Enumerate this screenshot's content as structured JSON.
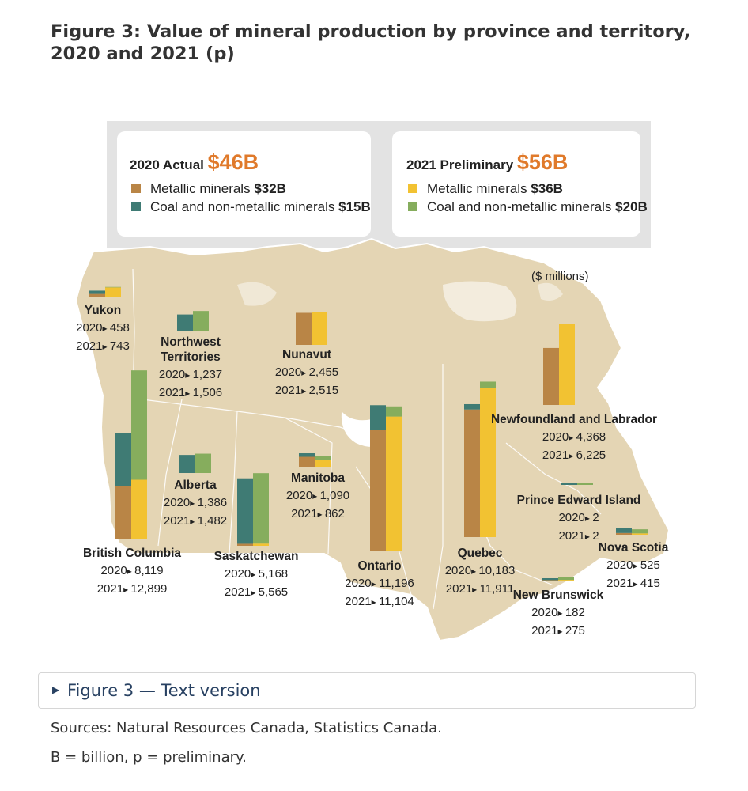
{
  "figure": {
    "title": "Figure 3: Value of mineral production by province and territory, 2020 and 2021 (p)",
    "text_version_label": "Figure 3 — Text version",
    "sources": "Sources: Natural Resources Canada, Statistics Canada.",
    "footnote": "B = billion, p = preliminary."
  },
  "colors": {
    "metallic_2020": "#b98546",
    "nonmetallic_2020": "#3f7b74",
    "metallic_2021": "#f2c232",
    "nonmetallic_2021": "#86ad5d",
    "map": "#e4d5b4",
    "map_border": "#ffffff",
    "accent": "#e07a2b"
  },
  "legend": {
    "actual": {
      "year_label": "2020 Actual",
      "total": "$46B",
      "items": [
        {
          "label": "Metallic minerals",
          "value": "$32B"
        },
        {
          "label": "Coal and non-metallic minerals",
          "value": "$15B"
        }
      ]
    },
    "preliminary": {
      "year_label": "2021 Preliminary",
      "total": "$56B",
      "items": [
        {
          "label": "Metallic minerals",
          "value": "$36B"
        },
        {
          "label": "Coal and non-metallic minerals",
          "value": "$20B"
        }
      ]
    }
  },
  "units_label": "($ millions)",
  "chart_data": {
    "type": "bar",
    "title": "Value of mineral production by province and territory, 2020 and 2021 (p)",
    "units": "$ millions",
    "series_names": [
      "2020",
      "2021"
    ],
    "components": [
      "Metallic minerals",
      "Coal and non-metallic minerals"
    ],
    "regions": [
      {
        "name": "Yukon",
        "v2020": 458,
        "v2021": 743,
        "label2020": "458",
        "label2021": "743"
      },
      {
        "name": "Northwest Territories",
        "v2020": 1237,
        "v2021": 1506,
        "label2020": "1,237",
        "label2021": "1,506"
      },
      {
        "name": "Nunavut",
        "v2020": 2455,
        "v2021": 2515,
        "label2020": "2,455",
        "label2021": "2,515"
      },
      {
        "name": "British Columbia",
        "v2020": 8119,
        "v2021": 12899,
        "label2020": "8,119",
        "label2021": "12,899"
      },
      {
        "name": "Alberta",
        "v2020": 1386,
        "v2021": 1482,
        "label2020": "1,386",
        "label2021": "1,482"
      },
      {
        "name": "Saskatchewan",
        "v2020": 5168,
        "v2021": 5565,
        "label2020": "5,168",
        "label2021": "5,565"
      },
      {
        "name": "Manitoba",
        "v2020": 1090,
        "v2021": 862,
        "label2020": "1,090",
        "label2021": "862"
      },
      {
        "name": "Ontario",
        "v2020": 11196,
        "v2021": 11104,
        "label2020": "11,196",
        "label2021": "11,104"
      },
      {
        "name": "Quebec",
        "v2020": 10183,
        "v2021": 11911,
        "label2020": "10,183",
        "label2021": "11,911"
      },
      {
        "name": "Newfoundland and Labrador",
        "v2020": 4368,
        "v2021": 6225,
        "label2020": "4,368",
        "label2021": "6,225"
      },
      {
        "name": "Prince Edward Island",
        "v2020": 2,
        "v2021": 2,
        "label2020": "2",
        "label2021": "2"
      },
      {
        "name": "Nova Scotia",
        "v2020": 525,
        "v2021": 415,
        "label2020": "525",
        "label2021": "415"
      },
      {
        "name": "New Brunswick",
        "v2020": 182,
        "v2021": 275,
        "label2020": "182",
        "label2021": "275"
      }
    ],
    "metallic_share": {
      "Yukon": [
        0.45,
        0.95
      ],
      "Northwest Territories": [
        0.0,
        0.0
      ],
      "Nunavut": [
        1.0,
        1.0
      ],
      "British Columbia": [
        0.5,
        0.35
      ],
      "Alberta": [
        0.0,
        0.0
      ],
      "Saskatchewan": [
        0.03,
        0.03
      ],
      "Manitoba": [
        0.75,
        0.7
      ],
      "Ontario": [
        0.83,
        0.93
      ],
      "Quebec": [
        0.96,
        0.96
      ],
      "Newfoundland and Labrador": [
        1.0,
        1.0
      ],
      "Prince Edward Island": [
        0.0,
        0.0
      ],
      "Nova Scotia": [
        0.25,
        0.25
      ],
      "New Brunswick": [
        0.2,
        0.2
      ]
    }
  }
}
